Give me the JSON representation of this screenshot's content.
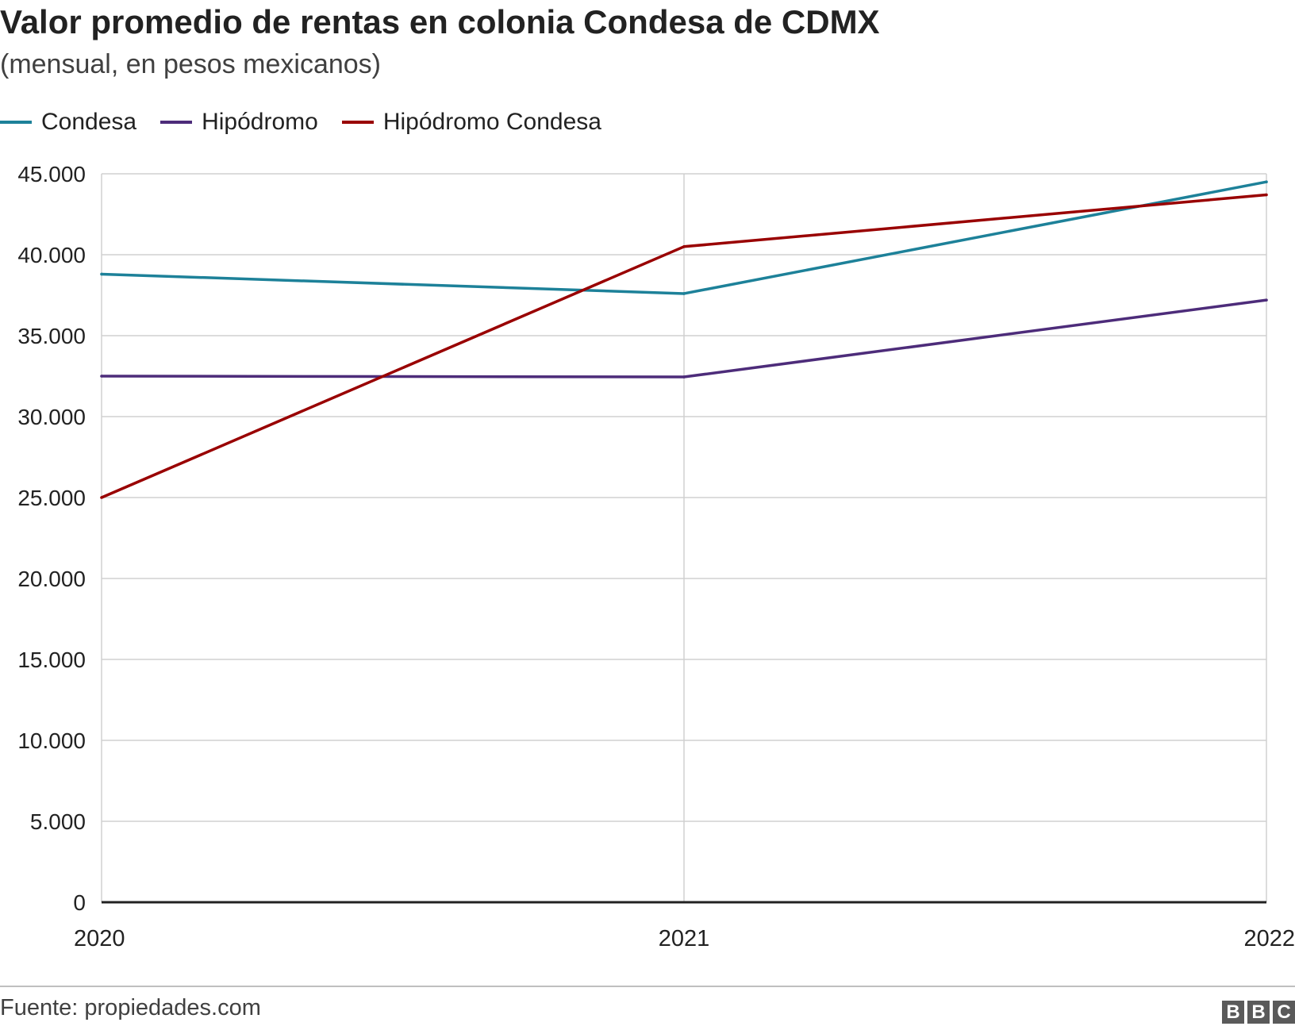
{
  "chart_data": {
    "type": "line",
    "title": "Valor promedio de rentas en colonia Condesa de CDMX",
    "subtitle": "(mensual, en pesos mexicanos)",
    "x": [
      "2020",
      "2021",
      "2022"
    ],
    "ylim": [
      0,
      45000
    ],
    "yticks": [
      0,
      5000,
      10000,
      15000,
      20000,
      25000,
      30000,
      35000,
      40000,
      45000
    ],
    "ytick_labels": [
      "0",
      "5.000",
      "10.000",
      "15.000",
      "20.000",
      "25.000",
      "30.000",
      "35.000",
      "40.000",
      "45.000"
    ],
    "grid": true,
    "legend_position": "top-left",
    "series": [
      {
        "name": "Condesa",
        "color": "#1d8199",
        "values": [
          38800,
          37600,
          44500
        ]
      },
      {
        "name": "Hipódromo",
        "color": "#4d2c7a",
        "values": [
          32500,
          32450,
          37200
        ]
      },
      {
        "name": "Hipódromo Condesa",
        "color": "#990000",
        "values": [
          25000,
          40500,
          43700
        ]
      }
    ]
  },
  "footer": {
    "source": "Fuente: propiedades.com",
    "logo_letters": [
      "B",
      "B",
      "C"
    ]
  }
}
